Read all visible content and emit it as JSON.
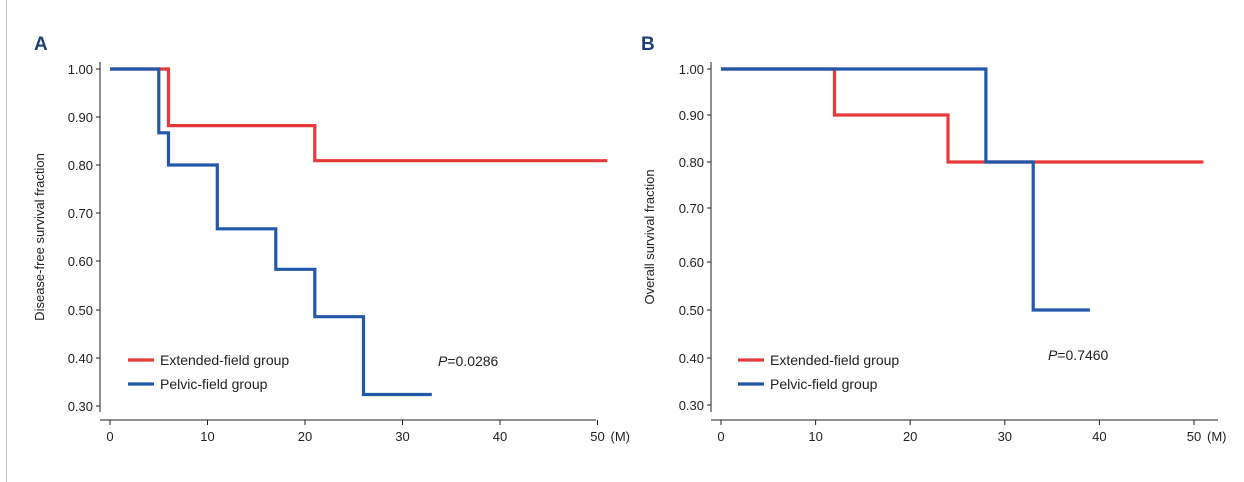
{
  "chart_data": [
    {
      "type": "line",
      "panel_label": "A",
      "ylabel": "Disease-free survival fraction",
      "xlabel": "",
      "x_unit": "(M)",
      "xlim": [
        0,
        52
      ],
      "ylim": [
        0.3,
        1.0
      ],
      "x_ticks": [
        "0",
        "10",
        "20",
        "30",
        "40",
        "50"
      ],
      "y_ticks": [
        "1.00",
        "0.90",
        "0.80",
        "0.70",
        "0.60",
        "0.50",
        "0.40",
        "0.30"
      ],
      "legend_position": "bottom-left",
      "p_prefix": "P",
      "p_value": "=0.0286",
      "series": [
        {
          "name": "Extended-field group",
          "color": "#e8393a",
          "x": [
            0,
            6,
            6,
            21,
            21,
            51
          ],
          "y": [
            1.0,
            1.0,
            0.882,
            0.882,
            0.809,
            0.809
          ]
        },
        {
          "name": "Pelvic-field group",
          "color": "#2358a8",
          "x": [
            0,
            5,
            5,
            6,
            6,
            11,
            11,
            17,
            17,
            21,
            21,
            26,
            26,
            33
          ],
          "y": [
            1.0,
            1.0,
            0.867,
            0.867,
            0.8,
            0.8,
            0.667,
            0.667,
            0.583,
            0.583,
            0.486,
            0.486,
            0.324,
            0.324
          ]
        }
      ]
    },
    {
      "type": "line",
      "panel_label": "B",
      "ylabel": "Overall survival fraction",
      "xlabel": "",
      "x_unit": "(M)",
      "xlim": [
        0,
        52
      ],
      "ylim": [
        0.3,
        1.0
      ],
      "x_ticks": [
        "0",
        "10",
        "20",
        "30",
        "40",
        "50"
      ],
      "y_ticks": [
        "1.00",
        "0.90",
        "0.80",
        "0.70",
        "0.60",
        "0.50",
        "0.40",
        "0.30"
      ],
      "legend_position": "bottom-left",
      "p_prefix": "P",
      "p_value": "=0.7460",
      "series": [
        {
          "name": "Extended-field group",
          "color": "#e8393a",
          "x": [
            0,
            12,
            12,
            24,
            24,
            51
          ],
          "y": [
            1.0,
            1.0,
            0.9,
            0.9,
            0.8,
            0.8
          ]
        },
        {
          "name": "Pelvic-field group",
          "color": "#2358a8",
          "x": [
            0,
            28,
            28,
            33,
            33,
            39
          ],
          "y": [
            1.0,
            1.0,
            0.8,
            0.8,
            0.5,
            0.5
          ]
        }
      ]
    }
  ]
}
